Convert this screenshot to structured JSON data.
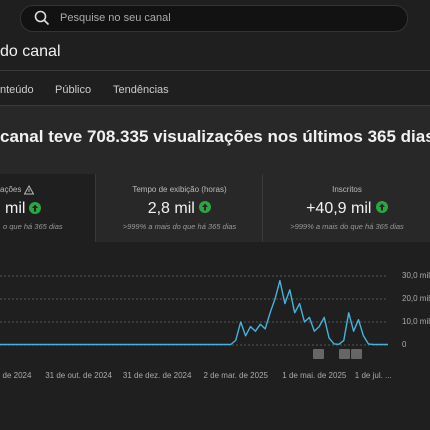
{
  "search": {
    "placeholder": "Pesquise no seu canal"
  },
  "page_title": "do canal",
  "tabs": [
    "nteúdo",
    "Público",
    "Tendências"
  ],
  "headline": "canal teve 708.335 visualizações nos últimos 365 dias",
  "cards": [
    {
      "label": "ações",
      "value": "mil",
      "note": "o que há 365 dias"
    },
    {
      "label": "Tempo de exibição (horas)",
      "value": "2,8 mil",
      "note": ">999% a mais do que há 365 dias"
    },
    {
      "label": "Inscritos",
      "value": "+40,9 mil",
      "note": ">999% a mais do que há 365 dias"
    }
  ],
  "chart_data": {
    "type": "line",
    "color": "#45b4dc",
    "categories": [
      null,
      null,
      null,
      ". de 2024",
      null,
      null,
      null,
      null,
      null,
      null,
      null,
      null,
      null,
      null,
      null,
      null,
      "31 de out. de 2024",
      null,
      null,
      null,
      null,
      null,
      null,
      null,
      null,
      null,
      null,
      null,
      null,
      null,
      null,
      null,
      "31 de dez. de 2024",
      null,
      null,
      null,
      null,
      null,
      null,
      null,
      null,
      null,
      null,
      null,
      null,
      null,
      null,
      null,
      "2 de mar. de 2025",
      null,
      null,
      null,
      null,
      null,
      null,
      null,
      null,
      null,
      null,
      null,
      null,
      null,
      null,
      null,
      "1 de mai. de 2025",
      null,
      null,
      null,
      null,
      null,
      null,
      null,
      null,
      null,
      null,
      null,
      "1 de jul. ...",
      null,
      null,
      null
    ],
    "values": [
      200,
      200,
      200,
      200,
      200,
      200,
      200,
      200,
      200,
      200,
      200,
      200,
      200,
      200,
      200,
      200,
      200,
      200,
      200,
      200,
      200,
      200,
      200,
      200,
      200,
      200,
      200,
      200,
      200,
      200,
      200,
      200,
      200,
      200,
      200,
      200,
      200,
      200,
      200,
      200,
      200,
      200,
      200,
      200,
      200,
      200,
      200,
      200,
      2000,
      10000,
      4000,
      8000,
      6000,
      9000,
      7000,
      14000,
      20000,
      28000,
      18000,
      24000,
      14000,
      18000,
      10000,
      12000,
      6000,
      8000,
      12000,
      3000,
      500,
      300,
      2000,
      14000,
      6000,
      11000,
      4000,
      500,
      200,
      200,
      200,
      200
    ],
    "ylim": [
      0,
      30000
    ],
    "yticks": [
      0,
      {
        "value": 10000,
        "label": "10,0 mil"
      },
      {
        "value": 20000,
        "label": "20,0 mil"
      },
      {
        "value": 30000,
        "label": "30,0 mil"
      }
    ],
    "grid": true
  }
}
